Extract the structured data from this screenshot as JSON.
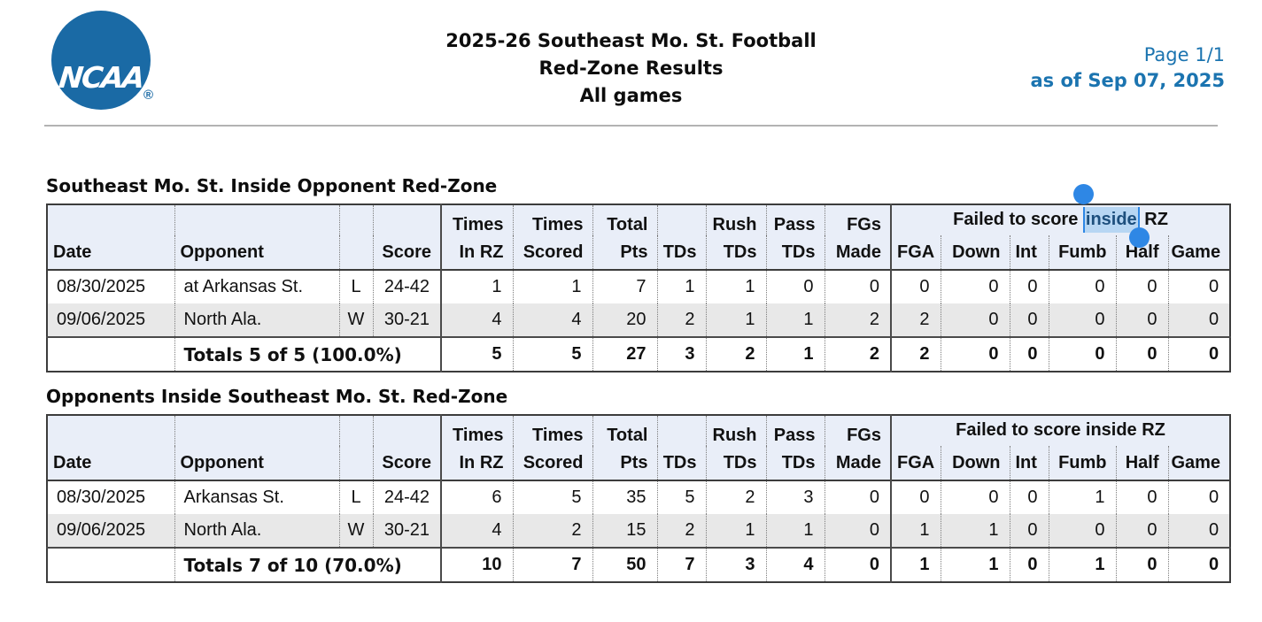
{
  "colors": {
    "logo_blue": "#1a6aa5",
    "header_text_blue": "#1b74b0",
    "table_header_bg": "#e9eef8",
    "stripe_row_bg": "#e8e8e8",
    "selection_highlight": "#b7d6f3",
    "selection_handle_blue": "#2e87e5",
    "table_border": "#3c3c3c"
  },
  "page_header": {
    "logo_text": "NCAA",
    "logo_reg": "®",
    "title_lines": [
      "2025-26 Southeast Mo. St. Football",
      "Red-Zone Results",
      "All games"
    ],
    "page_label": "Page 1/1",
    "as_of": "as of Sep 07, 2025"
  },
  "column_headers": {
    "date": "Date",
    "opponent": "Opponent",
    "wl": "",
    "score": "Score",
    "times_in_rz": "Times\nIn RZ",
    "times_scored": "Times\nScored",
    "total_pts": "Total\nPts",
    "tds": "TDs",
    "rush_tds": "Rush\nTDs",
    "pass_tds": "Pass\nTDs",
    "fgs_made": "FGs\nMade",
    "failed_prefix": "Failed to score ",
    "failed_selected": "inside",
    "failed_suffix": " RZ",
    "failed_full": "Failed to score inside RZ",
    "fga": "FGA",
    "down": "Down",
    "int": "Int",
    "fumb": "Fumb",
    "half": "Half",
    "game": "Game"
  },
  "selection": {
    "selected_text": "inside"
  },
  "tables": [
    {
      "section_title": "Southeast Mo. St. Inside Opponent Red-Zone",
      "rows": [
        [
          "08/30/2025",
          "at Arkansas St.",
          "L",
          "24-42",
          "1",
          "1",
          "7",
          "1",
          "1",
          "0",
          "0",
          "0",
          "0",
          "0",
          "0",
          "0",
          "0"
        ],
        [
          "09/06/2025",
          "North Ala.",
          "W",
          "30-21",
          "4",
          "4",
          "20",
          "2",
          "1",
          "1",
          "2",
          "2",
          "0",
          "0",
          "0",
          "0",
          "0"
        ]
      ],
      "totals_label": "Totals 5 of 5 (100.0%)",
      "totals": [
        "5",
        "5",
        "27",
        "3",
        "2",
        "1",
        "2",
        "2",
        "0",
        "0",
        "0",
        "0",
        "0"
      ]
    },
    {
      "section_title": "Opponents Inside Southeast Mo. St. Red-Zone",
      "rows": [
        [
          "08/30/2025",
          "Arkansas St.",
          "L",
          "24-42",
          "6",
          "5",
          "35",
          "5",
          "2",
          "3",
          "0",
          "0",
          "0",
          "0",
          "1",
          "0",
          "0"
        ],
        [
          "09/06/2025",
          "North Ala.",
          "W",
          "30-21",
          "4",
          "2",
          "15",
          "2",
          "1",
          "1",
          "0",
          "1",
          "1",
          "0",
          "0",
          "0",
          "0"
        ]
      ],
      "totals_label": "Totals 7 of 10 (70.0%)",
      "totals": [
        "10",
        "7",
        "50",
        "7",
        "3",
        "4",
        "0",
        "1",
        "1",
        "0",
        "1",
        "0",
        "0"
      ]
    }
  ]
}
